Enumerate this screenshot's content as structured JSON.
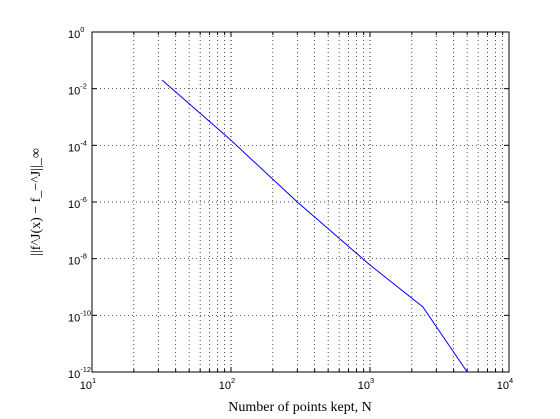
{
  "chart_data": {
    "type": "line",
    "title": "",
    "xlabel": "Number of points kept, N",
    "ylabel": "||f^J(x) − f_−^J||_∞",
    "xscale": "log",
    "yscale": "log",
    "xlim": [
      10,
      10000
    ],
    "ylim": [
      1e-12,
      1
    ],
    "grid": true,
    "x_ticks": [
      {
        "base": "10",
        "exp": "1"
      },
      {
        "base": "10",
        "exp": "2"
      },
      {
        "base": "10",
        "exp": "3"
      },
      {
        "base": "10",
        "exp": "4"
      }
    ],
    "y_ticks": [
      {
        "base": "10",
        "exp": "0"
      },
      {
        "base": "10",
        "exp": "-2"
      },
      {
        "base": "10",
        "exp": "-4"
      },
      {
        "base": "10",
        "exp": "-6"
      },
      {
        "base": "10",
        "exp": "-8"
      },
      {
        "base": "10",
        "exp": "-10"
      },
      {
        "base": "10",
        "exp": "-12"
      }
    ],
    "series": [
      {
        "color": "#0000ff",
        "x": [
          32,
          100,
          300,
          1000,
          2400,
          5000
        ],
        "y": [
          0.02,
          0.00015,
          1e-06,
          6e-09,
          2e-10,
          1e-12
        ]
      }
    ]
  }
}
